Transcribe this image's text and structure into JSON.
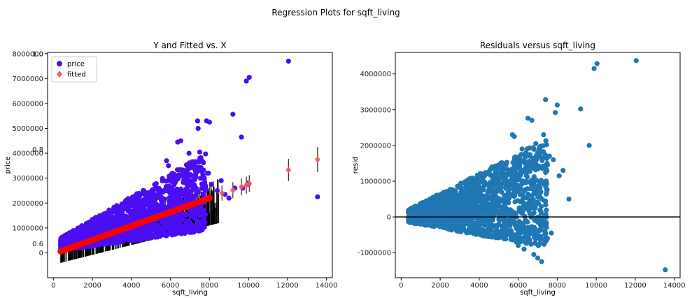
{
  "figure": {
    "suptitle": "Regression Plots for sqft_living"
  },
  "chart_data": [
    {
      "type": "scatter",
      "title": "Y and Fitted vs. X",
      "xlabel": "sqft_living",
      "ylabel": "price",
      "xlim": [
        -300,
        14300
      ],
      "ylim": [
        -1000000,
        8050000
      ],
      "xticks": [
        0,
        2000,
        4000,
        6000,
        8000,
        10000,
        12000,
        14000
      ],
      "yticks": [
        0,
        1000000,
        2000000,
        3000000,
        4000000,
        5000000,
        6000000,
        7000000,
        8000000
      ],
      "ghost_ticks": [
        "0.6",
        "0.8",
        "1.0"
      ],
      "legend": {
        "placement": "top-left",
        "entries": [
          "price",
          "fitted"
        ]
      },
      "colors": {
        "price": "#4b0df2",
        "fitted": "#ff5a5a",
        "fitted_line": "#ff0000",
        "error_bars": "#000000"
      },
      "fitted_line": {
        "x": [
          370,
          8000
        ],
        "y": [
          60000,
          2200000
        ]
      },
      "outlier_points": {
        "price": {
          "x": [
            12050,
            13540,
            10040,
            9890,
            9200,
            9640,
            7850,
            8000,
            7420,
            7390,
            6530,
            6370,
            6950,
            7500,
            7950,
            5800,
            5900,
            6100,
            6700,
            7000,
            7100,
            7300,
            7600,
            7900,
            8100,
            8400,
            8600,
            8800,
            9000,
            9300,
            10000,
            10000,
            9700
          ],
          "y": [
            7700000,
            2250000,
            7050000,
            6900000,
            5570000,
            4650000,
            5300000,
            5250000,
            5000000,
            5300000,
            4500000,
            4450000,
            4000000,
            4050000,
            3200000,
            3700000,
            3500000,
            3200000,
            3300000,
            3150000,
            3100000,
            3400000,
            3300000,
            3200000,
            2750000,
            2500000,
            2900000,
            2350000,
            2200000,
            2600000,
            2750000,
            2800000,
            2600000
          ]
        }
      },
      "fitted_error_points": {
        "x": [
          8640,
          9200,
          9640,
          9890,
          10040,
          12050,
          13540
        ],
        "y": [
          2400000,
          2520000,
          2650000,
          2720000,
          2780000,
          3330000,
          3750000
        ],
        "err": [
          300000,
          320000,
          340000,
          340000,
          340000,
          450000,
          500000
        ]
      },
      "dense_region": {
        "price_band": {
          "x_start": 370,
          "x_end": 7800,
          "upper_start": 600000,
          "upper_end": 4000000,
          "lower_start": 100000,
          "lower_end": 900000
        },
        "errbar_band": {
          "x_start": 370,
          "x_end": 8500,
          "upper_start": 500000,
          "upper_end": 3000000,
          "lower_start": -400000,
          "lower_end": 1200000
        }
      }
    },
    {
      "type": "scatter",
      "title": "Residuals versus sqft_living",
      "xlabel": "sqft_living",
      "ylabel": "resid",
      "xlim": [
        -300,
        14300
      ],
      "ylim": [
        -1700000,
        4600000
      ],
      "xticks": [
        0,
        2000,
        4000,
        6000,
        8000,
        10000,
        12000,
        14000
      ],
      "yticks": [
        -1000000,
        0,
        1000000,
        2000000,
        3000000,
        4000000
      ],
      "colors": {
        "points": "#1f77b4",
        "zero_line": "#000000"
      },
      "zero_line": {
        "y": 0
      },
      "outlier_points": {
        "x": [
          12050,
          13540,
          10040,
          9890,
          9200,
          9640,
          8000,
          7900,
          7400,
          6500,
          6700,
          5700,
          5800,
          6200,
          6400,
          6900,
          7100,
          7300,
          7600,
          7800,
          8100,
          8300,
          8600,
          6000,
          5400,
          5900,
          6300,
          6800,
          7000,
          7200,
          7500,
          7700,
          6100,
          6600
        ],
        "y": [
          4370000,
          -1480000,
          4290000,
          4150000,
          3020000,
          2000000,
          3130000,
          2920000,
          3280000,
          2760000,
          2700000,
          2300000,
          2250000,
          1900000,
          1800000,
          2050000,
          1950000,
          2300000,
          1700000,
          1600000,
          1150000,
          1300000,
          500000,
          -800000,
          -500000,
          -700000,
          -900000,
          -1050000,
          -1150000,
          -1250000,
          -600000,
          -450000,
          1600000,
          1400000
        ]
      },
      "dense_region": {
        "upper_start": 200000,
        "upper_end": 2200000,
        "lower_start": -150000,
        "lower_end": -850000,
        "x_start": 370,
        "x_end": 7500
      }
    }
  ]
}
